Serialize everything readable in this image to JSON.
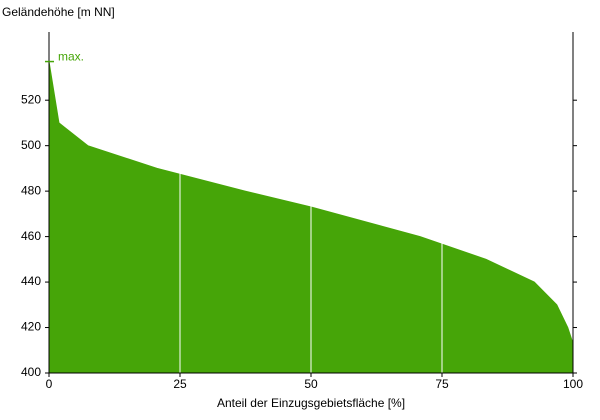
{
  "chart_data": {
    "type": "area",
    "ylabel": "Geländehöhe [m NN]",
    "xlabel": "Anteil der Einzugsgebietsfläche [%]",
    "x": [
      0,
      1.9,
      7.4,
      20.6,
      37.4,
      50,
      70.8,
      83.4,
      92.6,
      96.9,
      99.0,
      100
    ],
    "values": [
      537,
      510,
      500,
      490,
      480,
      473,
      460,
      450,
      440,
      430,
      420,
      413
    ],
    "color": "#46a508",
    "xlim": [
      0,
      100
    ],
    "xticks": [
      0,
      25,
      50,
      75,
      100
    ],
    "ylim": [
      400,
      550
    ],
    "yticks": [
      400,
      420,
      440,
      460,
      480,
      500,
      520
    ],
    "grid": "x",
    "annotations": [
      {
        "text": "max.",
        "x": 0,
        "y": 537
      }
    ]
  }
}
